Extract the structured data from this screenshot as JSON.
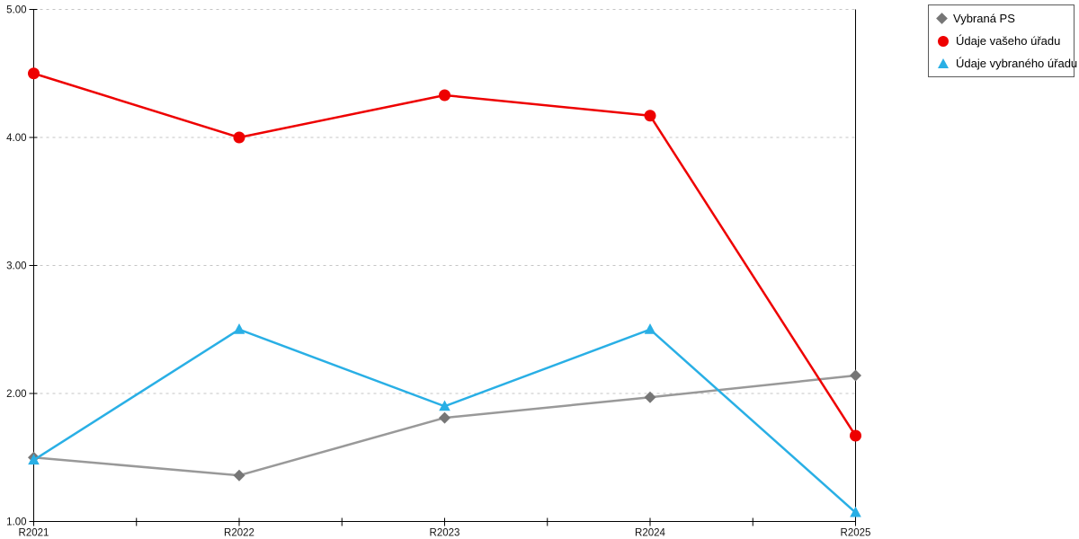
{
  "page": {
    "background": "#ffffff"
  },
  "chart_data": {
    "type": "line",
    "title": "",
    "categories": [
      "R2021",
      "R2022",
      "R2023",
      "R2024",
      "R2025"
    ],
    "series": [
      {
        "name": "Vybraná PS",
        "marker": "diamond",
        "color": "#999999",
        "marker_color": "#767676",
        "values": [
          1.5,
          1.36,
          1.81,
          1.97,
          2.14
        ]
      },
      {
        "name": "Údaje vašeho úřadu",
        "marker": "circle",
        "color": "#ee0000",
        "marker_color": "#ee0000",
        "values": [
          4.5,
          4.0,
          4.33,
          4.17,
          1.67
        ]
      },
      {
        "name": "Údaje vybraného úřadu",
        "marker": "triangle",
        "color": "#29afe5",
        "marker_color": "#29afe5",
        "values": [
          1.48,
          2.5,
          1.9,
          2.5,
          1.07
        ]
      }
    ],
    "ylim": [
      1,
      5
    ],
    "yticks": [
      1,
      2,
      3,
      4,
      5
    ],
    "ytick_labels": [
      "1.00",
      "2.00",
      "3.00",
      "4.00",
      "5.00"
    ],
    "x_minor_ticks": true,
    "grid": "horizontal-dashed",
    "gridline_color": "#c5c5c5",
    "axis_color": "#000000",
    "label_color": "#111111",
    "legend_position": "top-right"
  }
}
